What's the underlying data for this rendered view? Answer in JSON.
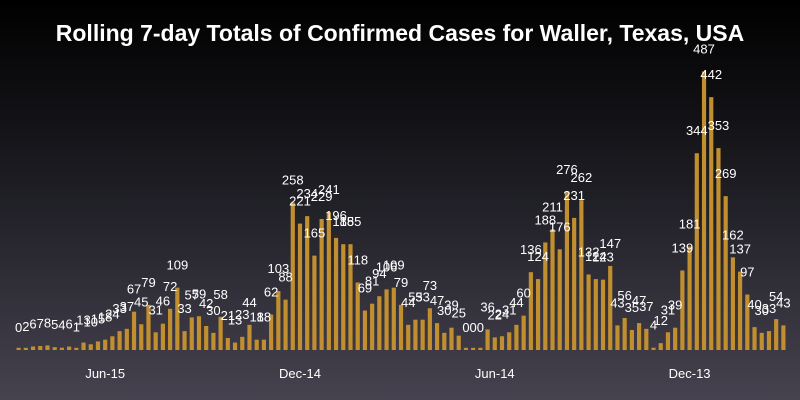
{
  "chart_data": {
    "type": "bar",
    "title": "Rolling 7-day Totals of Confirmed Cases for Waller, Texas, USA",
    "xlabel": "",
    "ylabel": "",
    "bar_color": "#c18f2f",
    "ylim": [
      0,
      500
    ],
    "grid": false,
    "x_tick_labels": [
      {
        "label": "Jun-15",
        "index": 12
      },
      {
        "label": "Dec-14",
        "index": 39
      },
      {
        "label": "Jun-14",
        "index": 66
      },
      {
        "label": "Dec-13",
        "index": 93
      }
    ],
    "values": [
      0,
      2,
      6,
      7,
      8,
      5,
      4,
      6,
      1,
      13,
      10,
      15,
      18,
      24,
      33,
      37,
      67,
      45,
      79,
      31,
      46,
      72,
      109,
      33,
      57,
      59,
      42,
      30,
      58,
      21,
      13,
      23,
      44,
      18,
      18,
      62,
      103,
      88,
      258,
      221,
      234,
      165,
      229,
      241,
      196,
      185,
      185,
      118,
      69,
      81,
      94,
      106,
      109,
      79,
      44,
      53,
      53,
      73,
      47,
      30,
      39,
      25,
      0,
      0,
      0,
      36,
      22,
      24,
      31,
      44,
      60,
      136,
      124,
      188,
      211,
      176,
      276,
      231,
      262,
      132,
      124,
      123,
      147,
      43,
      56,
      35,
      47,
      37,
      4,
      12,
      31,
      39,
      139,
      181,
      344,
      487,
      442,
      353,
      269,
      162,
      137,
      97,
      40,
      30,
      33,
      54,
      43
    ]
  }
}
